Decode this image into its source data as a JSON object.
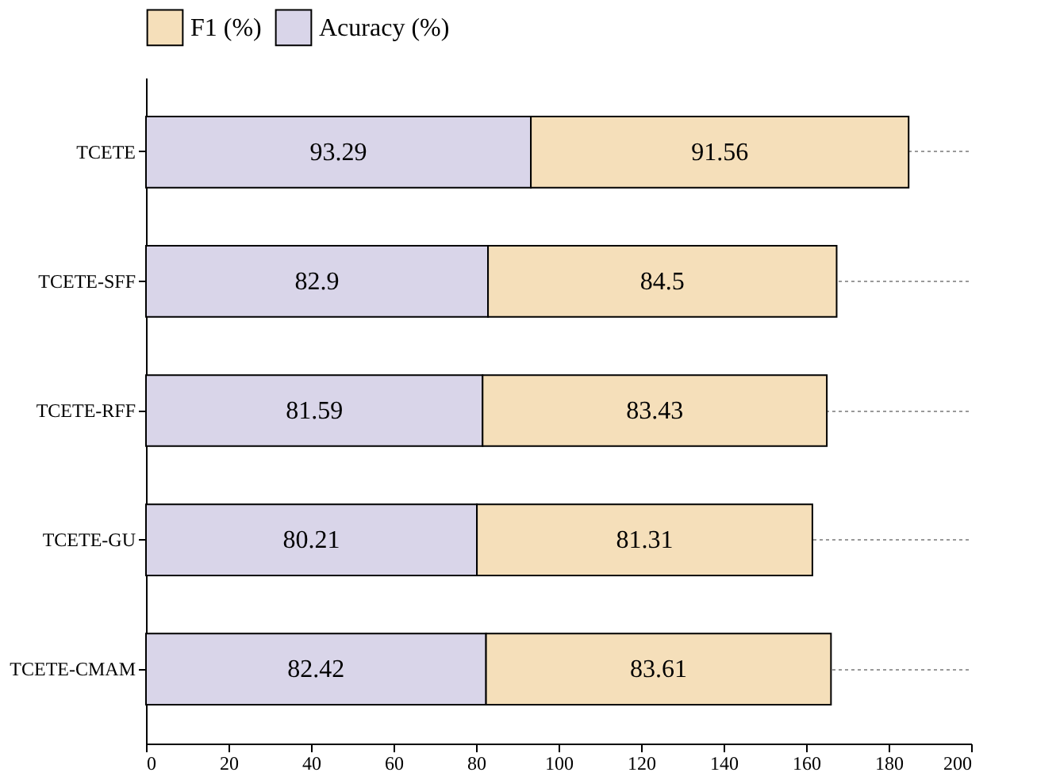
{
  "chart_data": {
    "type": "bar",
    "orientation": "horizontal",
    "stacked": true,
    "categories": [
      "TCETE",
      "TCETE-SFF",
      "TCETE-RFF",
      "TCETE-GU",
      "TCETE-CMAM"
    ],
    "series": [
      {
        "name": "Acuracy (%)",
        "color": "#d9d5e9",
        "values": [
          93.29,
          82.9,
          81.59,
          80.21,
          82.42
        ]
      },
      {
        "name": "F1 (%)",
        "color": "#f5dfba",
        "values": [
          91.56,
          84.5,
          83.43,
          81.31,
          83.61
        ]
      }
    ],
    "xlim": [
      0,
      200
    ],
    "xticks": [
      0,
      20,
      40,
      60,
      80,
      100,
      120,
      140,
      160,
      180,
      200
    ],
    "data_labels": true,
    "legend": "top",
    "grid": "y"
  }
}
